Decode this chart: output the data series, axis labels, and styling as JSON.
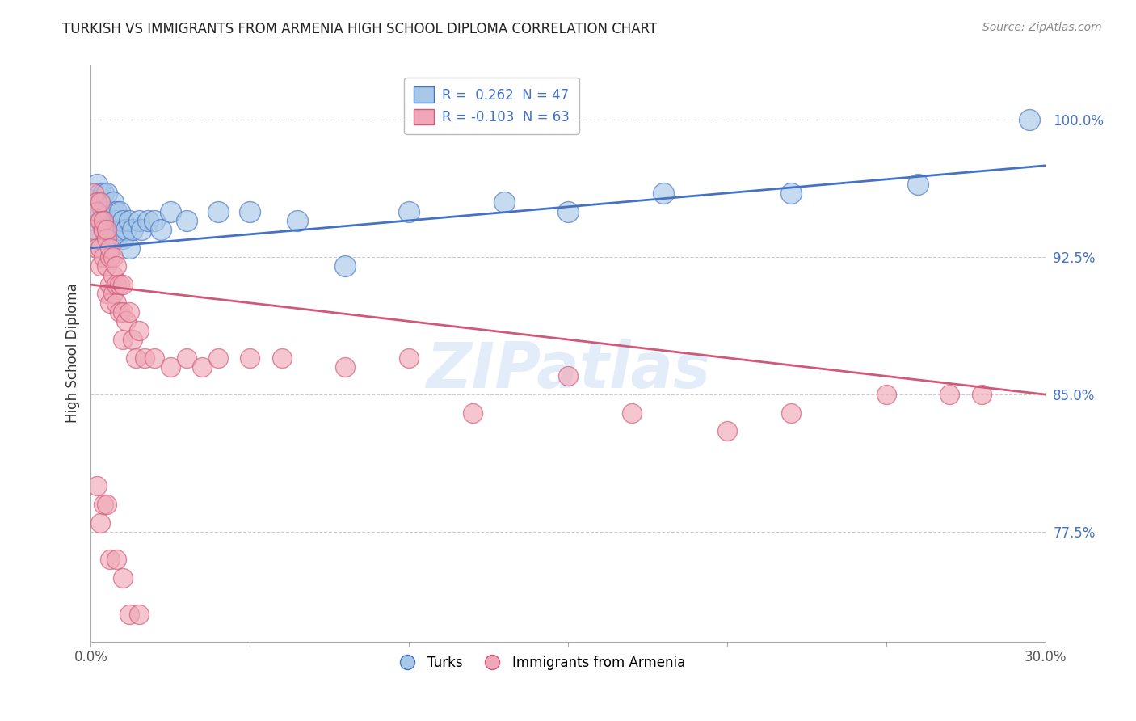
{
  "title": "TURKISH VS IMMIGRANTS FROM ARMENIA HIGH SCHOOL DIPLOMA CORRELATION CHART",
  "source": "Source: ZipAtlas.com",
  "ylabel": "High School Diploma",
  "legend_label1": "R =  0.262  N = 47",
  "legend_label2": "R = -0.103  N = 63",
  "legend_label3": "Turks",
  "legend_label4": "Immigrants from Armenia",
  "right_yticks": [
    0.775,
    0.85,
    0.925,
    1.0
  ],
  "right_yticklabels": [
    "77.5%",
    "85.0%",
    "92.5%",
    "100.0%"
  ],
  "xmin": 0.0,
  "xmax": 0.3,
  "ymin": 0.715,
  "ymax": 1.03,
  "color_blue": "#a8c8e8",
  "color_pink": "#f0a8b8",
  "color_blue_line": "#4472c4",
  "color_pink_line": "#d05878",
  "watermark": "ZIPatlas",
  "blue_scatter_x": [
    0.001,
    0.002,
    0.002,
    0.003,
    0.003,
    0.003,
    0.004,
    0.004,
    0.004,
    0.005,
    0.005,
    0.005,
    0.006,
    0.006,
    0.006,
    0.007,
    0.007,
    0.007,
    0.008,
    0.008,
    0.008,
    0.009,
    0.009,
    0.01,
    0.01,
    0.011,
    0.012,
    0.012,
    0.013,
    0.015,
    0.016,
    0.018,
    0.02,
    0.022,
    0.025,
    0.03,
    0.04,
    0.05,
    0.065,
    0.08,
    0.1,
    0.13,
    0.15,
    0.18,
    0.22,
    0.26,
    0.295
  ],
  "blue_scatter_y": [
    0.955,
    0.965,
    0.935,
    0.96,
    0.945,
    0.955,
    0.95,
    0.94,
    0.96,
    0.945,
    0.95,
    0.96,
    0.94,
    0.95,
    0.935,
    0.945,
    0.955,
    0.94,
    0.945,
    0.95,
    0.935,
    0.94,
    0.95,
    0.935,
    0.945,
    0.94,
    0.945,
    0.93,
    0.94,
    0.945,
    0.94,
    0.945,
    0.945,
    0.94,
    0.95,
    0.945,
    0.95,
    0.95,
    0.945,
    0.92,
    0.95,
    0.955,
    0.95,
    0.96,
    0.96,
    0.965,
    1.0
  ],
  "pink_scatter_x": [
    0.001,
    0.001,
    0.002,
    0.002,
    0.002,
    0.003,
    0.003,
    0.003,
    0.003,
    0.004,
    0.004,
    0.004,
    0.005,
    0.005,
    0.005,
    0.005,
    0.006,
    0.006,
    0.006,
    0.006,
    0.007,
    0.007,
    0.007,
    0.008,
    0.008,
    0.008,
    0.009,
    0.009,
    0.01,
    0.01,
    0.01,
    0.011,
    0.012,
    0.013,
    0.014,
    0.015,
    0.017,
    0.02,
    0.025,
    0.03,
    0.035,
    0.04,
    0.05,
    0.06,
    0.08,
    0.1,
    0.12,
    0.15,
    0.17,
    0.2,
    0.22,
    0.25,
    0.27,
    0.002,
    0.003,
    0.004,
    0.005,
    0.006,
    0.008,
    0.01,
    0.012,
    0.015,
    0.28
  ],
  "pink_scatter_y": [
    0.96,
    0.94,
    0.955,
    0.93,
    0.95,
    0.945,
    0.93,
    0.955,
    0.92,
    0.94,
    0.945,
    0.925,
    0.935,
    0.94,
    0.92,
    0.905,
    0.925,
    0.91,
    0.93,
    0.9,
    0.915,
    0.925,
    0.905,
    0.91,
    0.92,
    0.9,
    0.895,
    0.91,
    0.895,
    0.91,
    0.88,
    0.89,
    0.895,
    0.88,
    0.87,
    0.885,
    0.87,
    0.87,
    0.865,
    0.87,
    0.865,
    0.87,
    0.87,
    0.87,
    0.865,
    0.87,
    0.84,
    0.86,
    0.84,
    0.83,
    0.84,
    0.85,
    0.85,
    0.8,
    0.78,
    0.79,
    0.79,
    0.76,
    0.76,
    0.75,
    0.73,
    0.73,
    0.85
  ]
}
